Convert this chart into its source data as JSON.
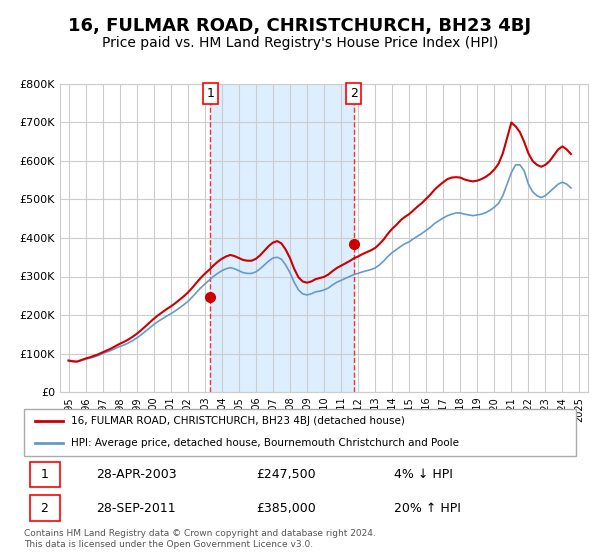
{
  "title": "16, FULMAR ROAD, CHRISTCHURCH, BH23 4BJ",
  "subtitle": "Price paid vs. HM Land Registry's House Price Index (HPI)",
  "title_fontsize": 13,
  "subtitle_fontsize": 10,
  "background_color": "#ffffff",
  "plot_bg_color": "#ffffff",
  "grid_color": "#cccccc",
  "shaded_region": [
    2003.33,
    2011.75
  ],
  "shaded_color": "#ddeeff",
  "red_line_color": "#cc0000",
  "blue_line_color": "#6699cc",
  "marker1_date": 2003.33,
  "marker1_value": 247500,
  "marker2_date": 2011.75,
  "marker2_value": 385000,
  "ylim": [
    0,
    800000
  ],
  "xlim": [
    1994.5,
    2025.5
  ],
  "yticks": [
    0,
    100000,
    200000,
    300000,
    400000,
    500000,
    600000,
    700000,
    800000
  ],
  "ytick_labels": [
    "£0",
    "£100K",
    "£200K",
    "£300K",
    "£400K",
    "£500K",
    "£600K",
    "£700K",
    "£800K"
  ],
  "xtick_years": [
    1995,
    1996,
    1997,
    1998,
    1999,
    2000,
    2001,
    2002,
    2003,
    2004,
    2005,
    2006,
    2007,
    2008,
    2009,
    2010,
    2011,
    2012,
    2013,
    2014,
    2015,
    2016,
    2017,
    2018,
    2019,
    2020,
    2021,
    2022,
    2023,
    2024,
    2025
  ],
  "legend_line1": "16, FULMAR ROAD, CHRISTCHURCH, BH23 4BJ (detached house)",
  "legend_line2": "HPI: Average price, detached house, Bournemouth Christchurch and Poole",
  "annotation1_label": "1",
  "annotation1_date": "28-APR-2003",
  "annotation1_price": "£247,500",
  "annotation1_hpi": "4% ↓ HPI",
  "annotation2_label": "2",
  "annotation2_date": "28-SEP-2011",
  "annotation2_price": "£385,000",
  "annotation2_hpi": "20% ↑ HPI",
  "footnote": "Contains HM Land Registry data © Crown copyright and database right 2024.\nThis data is licensed under the Open Government Licence v3.0.",
  "hpi_x": [
    1995.0,
    1995.25,
    1995.5,
    1995.75,
    1996.0,
    1996.25,
    1996.5,
    1996.75,
    1997.0,
    1997.25,
    1997.5,
    1997.75,
    1998.0,
    1998.25,
    1998.5,
    1998.75,
    1999.0,
    1999.25,
    1999.5,
    1999.75,
    2000.0,
    2000.25,
    2000.5,
    2000.75,
    2001.0,
    2001.25,
    2001.5,
    2001.75,
    2002.0,
    2002.25,
    2002.5,
    2002.75,
    2003.0,
    2003.25,
    2003.5,
    2003.75,
    2004.0,
    2004.25,
    2004.5,
    2004.75,
    2005.0,
    2005.25,
    2005.5,
    2005.75,
    2006.0,
    2006.25,
    2006.5,
    2006.75,
    2007.0,
    2007.25,
    2007.5,
    2007.75,
    2008.0,
    2008.25,
    2008.5,
    2008.75,
    2009.0,
    2009.25,
    2009.5,
    2009.75,
    2010.0,
    2010.25,
    2010.5,
    2010.75,
    2011.0,
    2011.25,
    2011.5,
    2011.75,
    2012.0,
    2012.25,
    2012.5,
    2012.75,
    2013.0,
    2013.25,
    2013.5,
    2013.75,
    2014.0,
    2014.25,
    2014.5,
    2014.75,
    2015.0,
    2015.25,
    2015.5,
    2015.75,
    2016.0,
    2016.25,
    2016.5,
    2016.75,
    2017.0,
    2017.25,
    2017.5,
    2017.75,
    2018.0,
    2018.25,
    2018.5,
    2018.75,
    2019.0,
    2019.25,
    2019.5,
    2019.75,
    2020.0,
    2020.25,
    2020.5,
    2020.75,
    2021.0,
    2021.25,
    2021.5,
    2021.75,
    2022.0,
    2022.25,
    2022.5,
    2022.75,
    2023.0,
    2023.25,
    2023.5,
    2023.75,
    2024.0,
    2024.25,
    2024.5
  ],
  "hpi_y": [
    80000,
    79000,
    78500,
    82000,
    85000,
    88000,
    91000,
    95000,
    100000,
    104000,
    108000,
    113000,
    118000,
    122000,
    127000,
    133000,
    140000,
    148000,
    157000,
    166000,
    175000,
    183000,
    190000,
    197000,
    203000,
    210000,
    218000,
    226000,
    235000,
    246000,
    258000,
    270000,
    280000,
    290000,
    300000,
    308000,
    315000,
    320000,
    323000,
    320000,
    315000,
    310000,
    308000,
    308000,
    312000,
    320000,
    330000,
    340000,
    348000,
    350000,
    345000,
    330000,
    310000,
    285000,
    265000,
    255000,
    252000,
    255000,
    260000,
    262000,
    265000,
    270000,
    278000,
    285000,
    290000,
    295000,
    300000,
    305000,
    308000,
    312000,
    315000,
    318000,
    322000,
    330000,
    340000,
    352000,
    362000,
    370000,
    378000,
    385000,
    390000,
    398000,
    405000,
    412000,
    420000,
    428000,
    438000,
    445000,
    452000,
    458000,
    462000,
    465000,
    465000,
    462000,
    460000,
    458000,
    460000,
    462000,
    466000,
    472000,
    480000,
    490000,
    510000,
    540000,
    570000,
    590000,
    590000,
    575000,
    540000,
    520000,
    510000,
    505000,
    510000,
    520000,
    530000,
    540000,
    545000,
    540000,
    530000
  ],
  "red_x": [
    1995.0,
    1995.25,
    1995.5,
    1995.75,
    1996.0,
    1996.25,
    1996.5,
    1996.75,
    1997.0,
    1997.25,
    1997.5,
    1997.75,
    1998.0,
    1998.25,
    1998.5,
    1998.75,
    1999.0,
    1999.25,
    1999.5,
    1999.75,
    2000.0,
    2000.25,
    2000.5,
    2000.75,
    2001.0,
    2001.25,
    2001.5,
    2001.75,
    2002.0,
    2002.25,
    2002.5,
    2002.75,
    2003.0,
    2003.25,
    2003.5,
    2003.75,
    2004.0,
    2004.25,
    2004.5,
    2004.75,
    2005.0,
    2005.25,
    2005.5,
    2005.75,
    2006.0,
    2006.25,
    2006.5,
    2006.75,
    2007.0,
    2007.25,
    2007.5,
    2007.75,
    2008.0,
    2008.25,
    2008.5,
    2008.75,
    2009.0,
    2009.25,
    2009.5,
    2009.75,
    2010.0,
    2010.25,
    2010.5,
    2010.75,
    2011.0,
    2011.25,
    2011.5,
    2011.75,
    2012.0,
    2012.25,
    2012.5,
    2012.75,
    2013.0,
    2013.25,
    2013.5,
    2013.75,
    2014.0,
    2014.25,
    2014.5,
    2014.75,
    2015.0,
    2015.25,
    2015.5,
    2015.75,
    2016.0,
    2016.25,
    2016.5,
    2016.75,
    2017.0,
    2017.25,
    2017.5,
    2017.75,
    2018.0,
    2018.25,
    2018.5,
    2018.75,
    2019.0,
    2019.25,
    2019.5,
    2019.75,
    2020.0,
    2020.25,
    2020.5,
    2020.75,
    2021.0,
    2021.25,
    2021.5,
    2021.75,
    2022.0,
    2022.25,
    2022.5,
    2022.75,
    2023.0,
    2023.25,
    2023.5,
    2023.75,
    2024.0,
    2024.25,
    2024.5
  ],
  "red_y": [
    82000,
    80000,
    79000,
    83000,
    87000,
    90000,
    94000,
    98000,
    103000,
    108000,
    113000,
    119000,
    125000,
    130000,
    136000,
    143000,
    151000,
    160000,
    170000,
    180000,
    190000,
    199000,
    207000,
    215000,
    222000,
    230000,
    239000,
    248000,
    258000,
    270000,
    283000,
    296000,
    307000,
    317000,
    328000,
    338000,
    346000,
    352000,
    356000,
    353000,
    348000,
    343000,
    341000,
    341000,
    346000,
    355000,
    367000,
    379000,
    388000,
    392000,
    386000,
    370000,
    348000,
    320000,
    298000,
    287000,
    284000,
    287000,
    293000,
    296000,
    299000,
    305000,
    314000,
    322000,
    328000,
    334000,
    340000,
    347000,
    352000,
    358000,
    363000,
    368000,
    374000,
    384000,
    396000,
    411000,
    424000,
    434000,
    446000,
    455000,
    462000,
    472000,
    482000,
    491000,
    502000,
    513000,
    526000,
    536000,
    545000,
    553000,
    557000,
    558000,
    557000,
    552000,
    549000,
    547000,
    549000,
    553000,
    559000,
    567000,
    578000,
    593000,
    620000,
    660000,
    700000,
    690000,
    675000,
    650000,
    620000,
    600000,
    590000,
    585000,
    590000,
    600000,
    615000,
    630000,
    638000,
    630000,
    618000
  ]
}
